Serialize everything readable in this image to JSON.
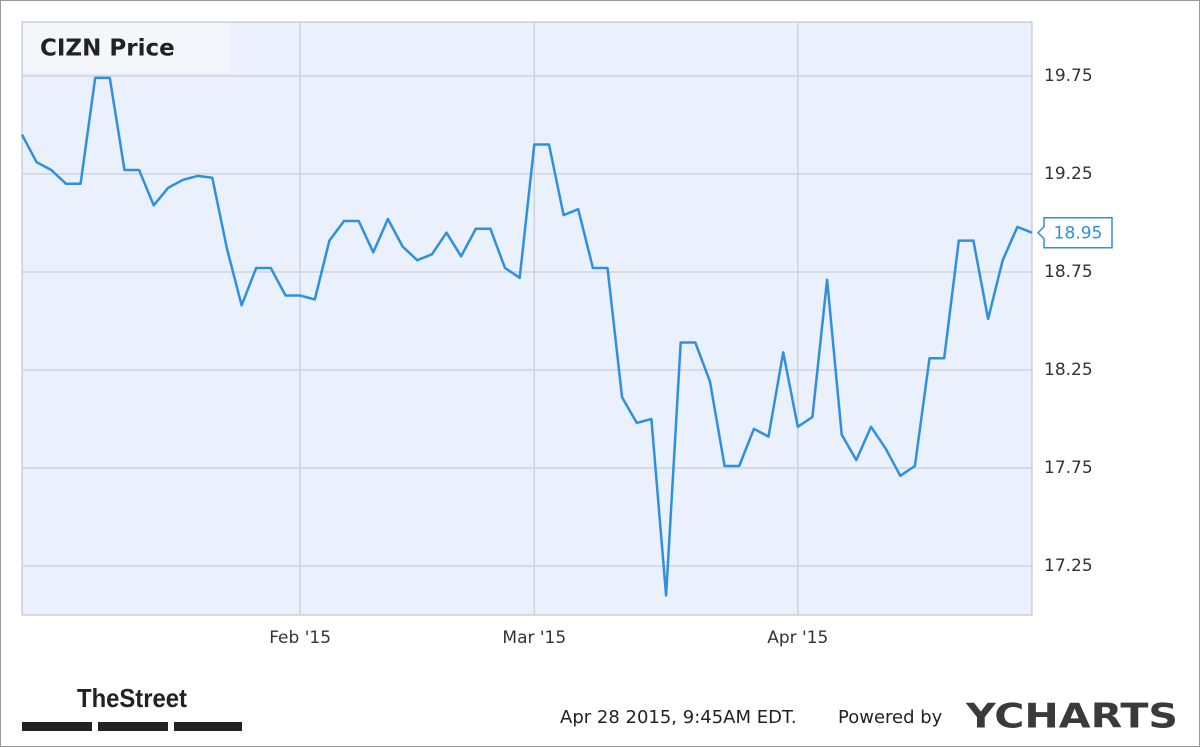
{
  "chart_data": {
    "type": "line",
    "title": "CIZN Price",
    "categories": [
      null,
      null,
      null,
      null,
      null,
      null,
      null,
      null,
      null,
      null,
      null,
      null,
      null,
      null,
      null,
      null,
      null,
      null,
      null,
      "Feb '15",
      null,
      null,
      null,
      null,
      null,
      null,
      null,
      null,
      null,
      null,
      null,
      null,
      null,
      null,
      null,
      "Mar '15",
      null,
      null,
      null,
      null,
      null,
      null,
      null,
      null,
      null,
      null,
      null,
      null,
      null,
      null,
      null,
      null,
      null,
      "Apr '15",
      null,
      null,
      null,
      null,
      null,
      null,
      null,
      null,
      null,
      null,
      null,
      null,
      null,
      null,
      null,
      null
    ],
    "values": [
      19.45,
      19.31,
      19.27,
      19.2,
      19.2,
      19.74,
      19.74,
      19.27,
      19.27,
      19.09,
      19.18,
      19.22,
      19.24,
      19.23,
      18.87,
      18.58,
      18.77,
      18.77,
      18.63,
      18.63,
      18.61,
      18.91,
      19.01,
      19.01,
      18.85,
      19.02,
      18.88,
      18.81,
      18.84,
      18.95,
      18.83,
      18.97,
      18.97,
      18.77,
      18.72,
      19.4,
      19.4,
      19.04,
      19.07,
      18.77,
      18.77,
      18.11,
      17.98,
      18.0,
      17.1,
      18.39,
      18.39,
      18.19,
      17.76,
      17.76,
      17.95,
      17.91,
      18.34,
      17.96,
      18.01,
      18.71,
      17.92,
      17.79,
      17.96,
      17.85,
      17.71,
      17.76,
      18.31,
      18.31,
      18.91,
      18.91,
      18.51,
      18.81,
      18.98,
      18.95
    ],
    "color": "#2f8fe0",
    "ylim": [
      17.0,
      20.025
    ],
    "yticks": [
      17.25,
      17.75,
      18.25,
      18.75,
      19.25,
      19.75
    ],
    "grid": true,
    "footnote": "Apr 28 2015, 9:45AM EDT.",
    "credit": "Powered by",
    "brand": "YCHARTS",
    "logo": "TheStreet"
  }
}
